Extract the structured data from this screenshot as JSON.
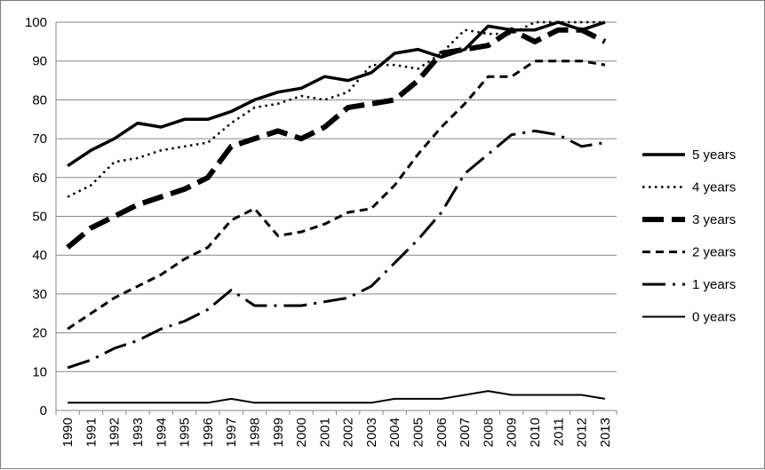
{
  "chart_data": {
    "type": "line",
    "title": "",
    "xlabel": "",
    "ylabel": "",
    "ylim": [
      0,
      100
    ],
    "yticks": [
      0,
      10,
      20,
      30,
      40,
      50,
      60,
      70,
      80,
      90,
      100
    ],
    "grid": "horizontal",
    "legend_position": "right",
    "x": [
      "1990",
      "1991",
      "1992",
      "1993",
      "1994",
      "1995",
      "1996",
      "1997",
      "1998",
      "1999",
      "2000",
      "2001",
      "2002",
      "2003",
      "2004",
      "2005",
      "2006",
      "2007",
      "2008",
      "2009",
      "2010",
      "2011",
      "2012",
      "2013"
    ],
    "series": [
      {
        "name": "5 years",
        "style": "solid-thick",
        "values": [
          63,
          67,
          70,
          74,
          73,
          75,
          75,
          77,
          80,
          82,
          83,
          86,
          85,
          87,
          92,
          93,
          91,
          93,
          99,
          98,
          98,
          100,
          98,
          100
        ]
      },
      {
        "name": "4 years",
        "style": "dotted",
        "values": [
          55,
          58,
          64,
          65,
          67,
          68,
          69,
          74,
          78,
          79,
          81,
          80,
          82,
          89,
          89,
          88,
          92,
          98,
          97,
          97,
          100,
          100,
          100,
          100
        ]
      },
      {
        "name": "3 years",
        "style": "long-dash-thick",
        "values": [
          42,
          47,
          50,
          53,
          55,
          57,
          60,
          68,
          70,
          72,
          70,
          73,
          78,
          79,
          80,
          85,
          92,
          93,
          94,
          98,
          95,
          98,
          98,
          95
        ]
      },
      {
        "name": "2 years",
        "style": "dashed",
        "values": [
          21,
          25,
          29,
          32,
          35,
          39,
          42,
          49,
          52,
          45,
          46,
          48,
          51,
          52,
          58,
          66,
          73,
          79,
          86,
          86,
          90,
          90,
          90,
          89
        ]
      },
      {
        "name": "1 years",
        "style": "dash-dot",
        "values": [
          11,
          13,
          16,
          18,
          21,
          23,
          26,
          31,
          27,
          27,
          27,
          28,
          29,
          32,
          38,
          44,
          51,
          61,
          66,
          71,
          72,
          71,
          68,
          69
        ]
      },
      {
        "name": "0 years",
        "style": "solid-thin",
        "values": [
          2,
          2,
          2,
          2,
          2,
          2,
          2,
          3,
          2,
          2,
          2,
          2,
          2,
          2,
          3,
          3,
          3,
          4,
          5,
          4,
          4,
          4,
          4,
          3
        ]
      }
    ]
  }
}
